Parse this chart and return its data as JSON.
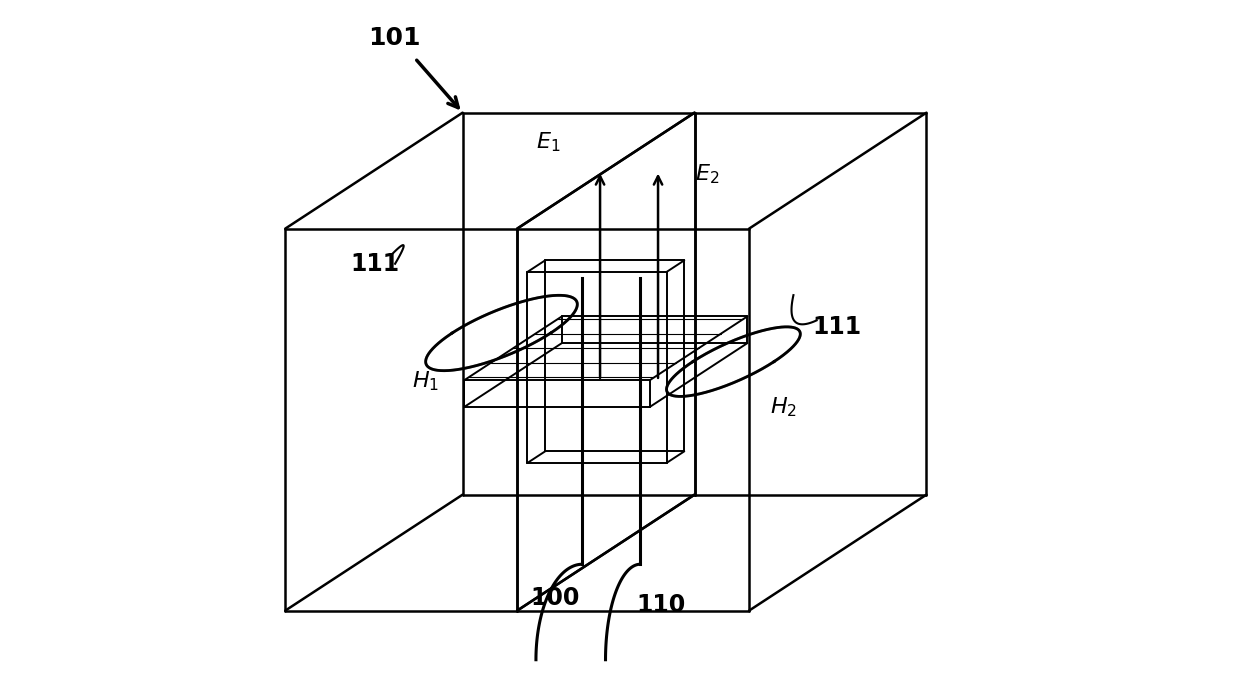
{
  "bg_color": "#ffffff",
  "line_color": "#000000",
  "lw_main": 1.8,
  "lw_bridge": 1.4,
  "lw_post": 2.2,
  "lw_field": 2.0,
  "figsize": [
    12.39,
    6.96
  ],
  "dpi": 100,
  "proj": {
    "ox": 0.48,
    "oy": 0.48,
    "sx": 0.17,
    "sy": 0.28,
    "dzx": 0.13,
    "dzy": 0.085
  }
}
